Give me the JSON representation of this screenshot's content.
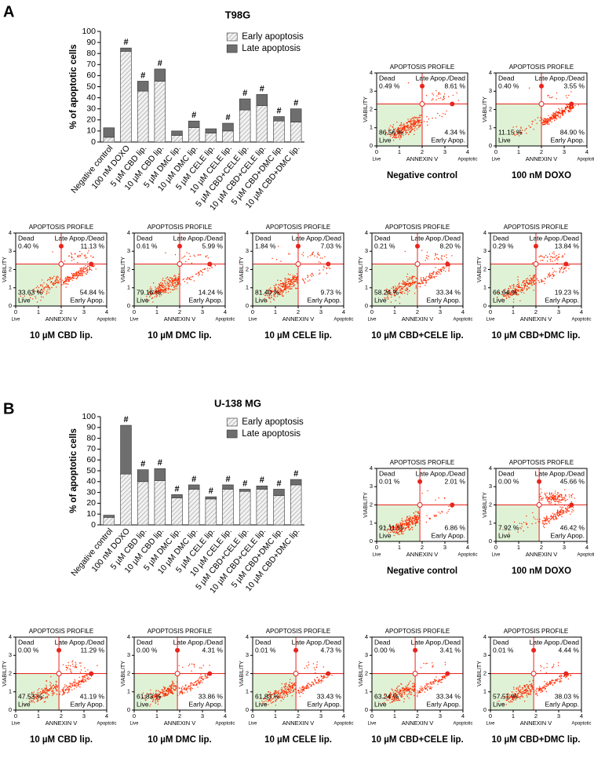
{
  "chart_data": [
    {
      "type": "stacked_bar",
      "panel": "A",
      "title": "T98G",
      "ylabel": "% of apoptotic cells",
      "categories": [
        "Negative control",
        "100 nM DOXO",
        "5 µM CBD lip.",
        "10 µM CBD lip.",
        "5 µM DMC lip.",
        "10 µM DMC lip.",
        "5 µM CELE lip.",
        "10 µM CELE lip.",
        "5 µM CBD+CELE lip.",
        "10 µM CBD+CELE lip.",
        "5 µM CBD+DMC lip.",
        "10 µM CBD+DMC lip."
      ],
      "series": [
        {
          "name": "Early apoptosis",
          "color": "#e4e4e4",
          "hatch": true,
          "values": [
            4.3,
            82,
            46,
            55,
            6,
            13,
            8,
            10,
            29,
            33,
            19,
            18
          ]
        },
        {
          "name": "Late apoptosis",
          "color": "#6e6e6e",
          "values": [
            8.6,
            3,
            9,
            11,
            4,
            6,
            4,
            7,
            10,
            10,
            4,
            12
          ]
        }
      ],
      "significance": [
        null,
        "#",
        "#",
        "#",
        null,
        "#",
        null,
        "#",
        "#",
        "#",
        "#",
        "#"
      ],
      "ylim": [
        0,
        100
      ],
      "yticks": [
        0,
        10,
        20,
        30,
        40,
        50,
        60,
        70,
        80,
        90,
        100
      ],
      "legend": "upper right"
    },
    {
      "type": "quadrant_scatter",
      "title": "Negative control",
      "header": "APOPTOSIS PROFILE",
      "xlabel": "ANNEXIN V",
      "ylabel": "VIABILITY",
      "x_end_labels": [
        "Live",
        "Apoptotic"
      ],
      "quadrant_names": [
        "Dead",
        "Late Apop./Dead",
        "Live",
        "Early Apop."
      ],
      "values": [
        0.49,
        8.61,
        86.56,
        4.34
      ],
      "value_labels": [
        "0.49 %",
        "8.61 %",
        "86.56 %",
        "4.34 %"
      ],
      "gate": [
        2,
        2.3
      ],
      "xlim": [
        0,
        4
      ],
      "ylim": [
        0,
        4
      ],
      "xticks": [
        0,
        1,
        2,
        3,
        4
      ],
      "yticks": [
        0,
        1,
        2,
        3,
        4
      ],
      "color": "#ff2a00"
    },
    {
      "type": "quadrant_scatter",
      "title": "100 nM DOXO",
      "header": "APOPTOSIS PROFILE",
      "xlabel": "ANNEXIN V",
      "ylabel": "VIABILITY",
      "x_end_labels": [
        "Live",
        "Apoptotic"
      ],
      "quadrant_names": [
        "Dead",
        "Late Apop./Dead",
        "Live",
        "Early Apop."
      ],
      "values": [
        0.4,
        3.55,
        11.15,
        84.9
      ],
      "value_labels": [
        "0.40 %",
        "3.55 %",
        "11.15 %",
        "84.90 %"
      ],
      "gate": [
        2,
        2.3
      ],
      "xlim": [
        0,
        4
      ],
      "ylim": [
        0,
        4
      ],
      "xticks": [
        0,
        1,
        2,
        3,
        4
      ],
      "yticks": [
        0,
        1,
        2,
        3,
        4
      ],
      "color": "#ff2a00"
    },
    {
      "type": "quadrant_scatter",
      "title": "10 µM CBD lip.",
      "header": "APOPTOSIS PROFILE",
      "xlabel": "ANNEXIN V",
      "ylabel": "VIABILITY",
      "x_end_labels": [
        "Live",
        "Apoptotic"
      ],
      "quadrant_names": [
        "Dead",
        "Late Apop./Dead",
        "Live",
        "Early Apop."
      ],
      "values": [
        0.4,
        11.13,
        33.63,
        54.84
      ],
      "value_labels": [
        "0.40 %",
        "11.13 %",
        "33.63 %",
        "54.84 %"
      ],
      "gate": [
        2,
        2.3
      ],
      "xlim": [
        0,
        4
      ],
      "ylim": [
        0,
        4
      ],
      "xticks": [
        0,
        1,
        2,
        3,
        4
      ],
      "yticks": [
        0,
        1,
        2,
        3,
        4
      ],
      "color": "#ff2a00"
    },
    {
      "type": "quadrant_scatter",
      "title": "10 µM DMC lip.",
      "header": "APOPTOSIS PROFILE",
      "xlabel": "ANNEXIN V",
      "ylabel": "VIABILITY",
      "x_end_labels": [
        "Live",
        "Apoptotic"
      ],
      "quadrant_names": [
        "Dead",
        "Late Apop./Dead",
        "Live",
        "Early Apop."
      ],
      "values": [
        0.61,
        5.99,
        79.16,
        14.24
      ],
      "value_labels": [
        "0.61 %",
        "5.99 %",
        "79.16 %",
        "14.24 %"
      ],
      "gate": [
        2,
        2.3
      ],
      "xlim": [
        0,
        4
      ],
      "ylim": [
        0,
        4
      ],
      "xticks": [
        0,
        1,
        2,
        3,
        4
      ],
      "yticks": [
        0,
        1,
        2,
        3,
        4
      ],
      "color": "#ff2a00"
    },
    {
      "type": "quadrant_scatter",
      "title": "10 µM CELE lip.",
      "header": "APOPTOSIS PROFILE",
      "xlabel": "ANNEXIN V",
      "ylabel": "VIABILITY",
      "x_end_labels": [
        "Live",
        "Apoptotic"
      ],
      "quadrant_names": [
        "Dead",
        "Late Apop./Dead",
        "Live",
        "Early Apop."
      ],
      "values": [
        1.84,
        7.03,
        81.4,
        9.73
      ],
      "value_labels": [
        "1.84 %",
        "7.03 %",
        "81.40 %",
        "9.73 %"
      ],
      "gate": [
        2,
        2.3
      ],
      "xlim": [
        0,
        4
      ],
      "ylim": [
        0,
        4
      ],
      "xticks": [
        0,
        1,
        2,
        3,
        4
      ],
      "yticks": [
        0,
        1,
        2,
        3,
        4
      ],
      "color": "#ff2a00"
    },
    {
      "type": "quadrant_scatter",
      "title": "10 µM CBD+CELE lip.",
      "header": "APOPTOSIS PROFILE",
      "xlabel": "ANNEXIN V",
      "ylabel": "VIABILITY",
      "x_end_labels": [
        "Live",
        "Apoptotic"
      ],
      "quadrant_names": [
        "Dead",
        "Late Apop./Dead",
        "Live",
        "Early Apop."
      ],
      "values": [
        0.21,
        8.2,
        58.24,
        33.34
      ],
      "value_labels": [
        "0.21 %",
        "8.20 %",
        "58.24 %",
        "33.34 %"
      ],
      "gate": [
        2,
        2.3
      ],
      "xlim": [
        0,
        4
      ],
      "ylim": [
        0,
        4
      ],
      "xticks": [
        0,
        1,
        2,
        3,
        4
      ],
      "yticks": [
        0,
        1,
        2,
        3,
        4
      ],
      "color": "#ff2a00"
    },
    {
      "type": "quadrant_scatter",
      "title": "10 µM CBD+DMC lip.",
      "header": "APOPTOSIS PROFILE",
      "xlabel": "ANNEXIN V",
      "ylabel": "VIABILITY",
      "x_end_labels": [
        "Live",
        "Apoptotic"
      ],
      "quadrant_names": [
        "Dead",
        "Late Apop./Dead",
        "Live",
        "Early Apop."
      ],
      "values": [
        0.29,
        13.84,
        66.64,
        19.23
      ],
      "value_labels": [
        "0.29 %",
        "13.84 %",
        "66.64 %",
        "19.23 %"
      ],
      "gate": [
        2,
        2.3
      ],
      "xlim": [
        0,
        4
      ],
      "ylim": [
        0,
        4
      ],
      "xticks": [
        0,
        1,
        2,
        3,
        4
      ],
      "yticks": [
        0,
        1,
        2,
        3,
        4
      ],
      "color": "#ff2a00"
    },
    {
      "type": "stacked_bar",
      "panel": "B",
      "title": "U-138 MG",
      "ylabel": "% of apoptotic cells",
      "categories": [
        "Negative control",
        "100 nM DOXO",
        "5 µM CBD lip.",
        "10 µM CBD lip.",
        "5 µM DMC lip.",
        "10 µM DMC lip.",
        "5 µM CELE lip.",
        "10 µM CELE lip.",
        "5 µM CBD+CELE lip.",
        "10 µM CBD+CELE lip.",
        "5 µM CBD+DMC lip.",
        "10 µM CBD+DMC lip."
      ],
      "series": [
        {
          "name": "Early apoptosis",
          "color": "#e4e4e4",
          "hatch": true,
          "values": [
            7,
            47,
            40,
            41,
            25,
            33,
            24,
            33,
            31,
            33,
            27,
            37
          ]
        },
        {
          "name": "Late apoptosis",
          "color": "#6e6e6e",
          "values": [
            2,
            45,
            11,
            11,
            3,
            4,
            2,
            4,
            2,
            3,
            6,
            5
          ]
        }
      ],
      "significance": [
        null,
        "#",
        "#",
        "#",
        "#",
        "#",
        "#",
        "#",
        "#",
        "#",
        "#",
        "#"
      ],
      "ylim": [
        0,
        100
      ],
      "yticks": [
        0,
        10,
        20,
        30,
        40,
        50,
        60,
        70,
        80,
        90,
        100
      ],
      "legend": "upper right"
    },
    {
      "type": "quadrant_scatter",
      "title": "Negative control",
      "header": "APOPTOSIS PROFILE",
      "xlabel": "ANNEXIN V",
      "ylabel": "VIABILITY",
      "x_end_labels": [
        "Live",
        "Apoptotic"
      ],
      "quadrant_names": [
        "Dead",
        "Late Apop./Dead",
        "Live",
        "Early Apop."
      ],
      "values": [
        0.01,
        2.01,
        91.11,
        6.86
      ],
      "value_labels": [
        "0.01 %",
        "2.01 %",
        "91.11 %",
        "6.86 %"
      ],
      "gate": [
        1.9,
        2
      ],
      "xlim": [
        0,
        4
      ],
      "ylim": [
        0,
        4
      ],
      "xticks": [
        0,
        1,
        2,
        3,
        4
      ],
      "yticks": [
        0,
        1,
        2,
        3,
        4
      ],
      "color": "#ff2a00"
    },
    {
      "type": "quadrant_scatter",
      "title": "100 nM DOXO",
      "header": "APOPTOSIS PROFILE",
      "xlabel": "ANNEXIN V",
      "ylabel": "VIABILITY",
      "x_end_labels": [
        "Live",
        "Apoptotic"
      ],
      "quadrant_names": [
        "Dead",
        "Late Apop./Dead",
        "Live",
        "Early Apop."
      ],
      "values": [
        0.0,
        45.66,
        7.92,
        46.42
      ],
      "value_labels": [
        "0.00 %",
        "45.66 %",
        "7.92 %",
        "46.42 %"
      ],
      "gate": [
        1.9,
        2
      ],
      "xlim": [
        0,
        4
      ],
      "ylim": [
        0,
        4
      ],
      "xticks": [
        0,
        1,
        2,
        3,
        4
      ],
      "yticks": [
        0,
        1,
        2,
        3,
        4
      ],
      "color": "#ff2a00"
    },
    {
      "type": "quadrant_scatter",
      "title": "10 µM CBD lip.",
      "header": "APOPTOSIS PROFILE",
      "xlabel": "ANNEXIN V",
      "ylabel": "VIABILITY",
      "x_end_labels": [
        "Live",
        "Apoptotic"
      ],
      "quadrant_names": [
        "Dead",
        "Late Apop./Dead",
        "Live",
        "Early Apop."
      ],
      "values": [
        0.0,
        11.29,
        47.53,
        41.19
      ],
      "value_labels": [
        "0.00 %",
        "11.29 %",
        "47.53 %",
        "41.19 %"
      ],
      "gate": [
        1.9,
        2
      ],
      "xlim": [
        0,
        4
      ],
      "ylim": [
        0,
        4
      ],
      "xticks": [
        0,
        1,
        2,
        3,
        4
      ],
      "yticks": [
        0,
        1,
        2,
        3,
        4
      ],
      "color": "#ff2a00"
    },
    {
      "type": "quadrant_scatter",
      "title": "10 µM DMC lip.",
      "header": "APOPTOSIS PROFILE",
      "xlabel": "ANNEXIN V",
      "ylabel": "VIABILITY",
      "x_end_labels": [
        "Live",
        "Apoptotic"
      ],
      "quadrant_names": [
        "Dead",
        "Late Apop./Dead",
        "Live",
        "Early Apop."
      ],
      "values": [
        0.0,
        4.31,
        61.83,
        33.86
      ],
      "value_labels": [
        "0.00 %",
        "4.31 %",
        "61.83 %",
        "33.86 %"
      ],
      "gate": [
        1.9,
        2
      ],
      "xlim": [
        0,
        4
      ],
      "ylim": [
        0,
        4
      ],
      "xticks": [
        0,
        1,
        2,
        3,
        4
      ],
      "yticks": [
        0,
        1,
        2,
        3,
        4
      ],
      "color": "#ff2a00"
    },
    {
      "type": "quadrant_scatter",
      "title": "10 µM CELE lip.",
      "header": "APOPTOSIS PROFILE",
      "xlabel": "ANNEXIN V",
      "ylabel": "VIABILITY",
      "x_end_labels": [
        "Live",
        "Apoptotic"
      ],
      "quadrant_names": [
        "Dead",
        "Late Apop./Dead",
        "Live",
        "Early Apop."
      ],
      "values": [
        0.01,
        4.73,
        61.83,
        33.43
      ],
      "value_labels": [
        "0.01 %",
        "4.73 %",
        "61.83 %",
        "33.43 %"
      ],
      "gate": [
        1.9,
        2
      ],
      "xlim": [
        0,
        4
      ],
      "ylim": [
        0,
        4
      ],
      "xticks": [
        0,
        1,
        2,
        3,
        4
      ],
      "yticks": [
        0,
        1,
        2,
        3,
        4
      ],
      "color": "#ff2a00"
    },
    {
      "type": "quadrant_scatter",
      "title": "10 µM CBD+CELE lip.",
      "header": "APOPTOSIS PROFILE",
      "xlabel": "ANNEXIN V",
      "ylabel": "VIABILITY",
      "x_end_labels": [
        "Live",
        "Apoptotic"
      ],
      "quadrant_names": [
        "Dead",
        "Late Apop./Dead",
        "Live",
        "Early Apop."
      ],
      "values": [
        0.0,
        3.41,
        63.24,
        33.34
      ],
      "value_labels": [
        "0.00 %",
        "3.41 %",
        "63.24 %",
        "33.34 %"
      ],
      "gate": [
        1.9,
        2
      ],
      "xlim": [
        0,
        4
      ],
      "ylim": [
        0,
        4
      ],
      "xticks": [
        0,
        1,
        2,
        3,
        4
      ],
      "yticks": [
        0,
        1,
        2,
        3,
        4
      ],
      "color": "#ff2a00"
    },
    {
      "type": "quadrant_scatter",
      "title": "10 µM CBD+DMC lip.",
      "header": "APOPTOSIS PROFILE",
      "xlabel": "ANNEXIN V",
      "ylabel": "VIABILITY",
      "x_end_labels": [
        "Live",
        "Apoptotic"
      ],
      "quadrant_names": [
        "Dead",
        "Late Apop./Dead",
        "Live",
        "Early Apop."
      ],
      "values": [
        0.01,
        4.44,
        57.51,
        38.03
      ],
      "value_labels": [
        "0.01 %",
        "4.44 %",
        "57.51 %",
        "38.03 %"
      ],
      "gate": [
        1.9,
        2
      ],
      "xlim": [
        0,
        4
      ],
      "ylim": [
        0,
        4
      ],
      "xticks": [
        0,
        1,
        2,
        3,
        4
      ],
      "yticks": [
        0,
        1,
        2,
        3,
        4
      ],
      "color": "#ff2a00"
    }
  ]
}
